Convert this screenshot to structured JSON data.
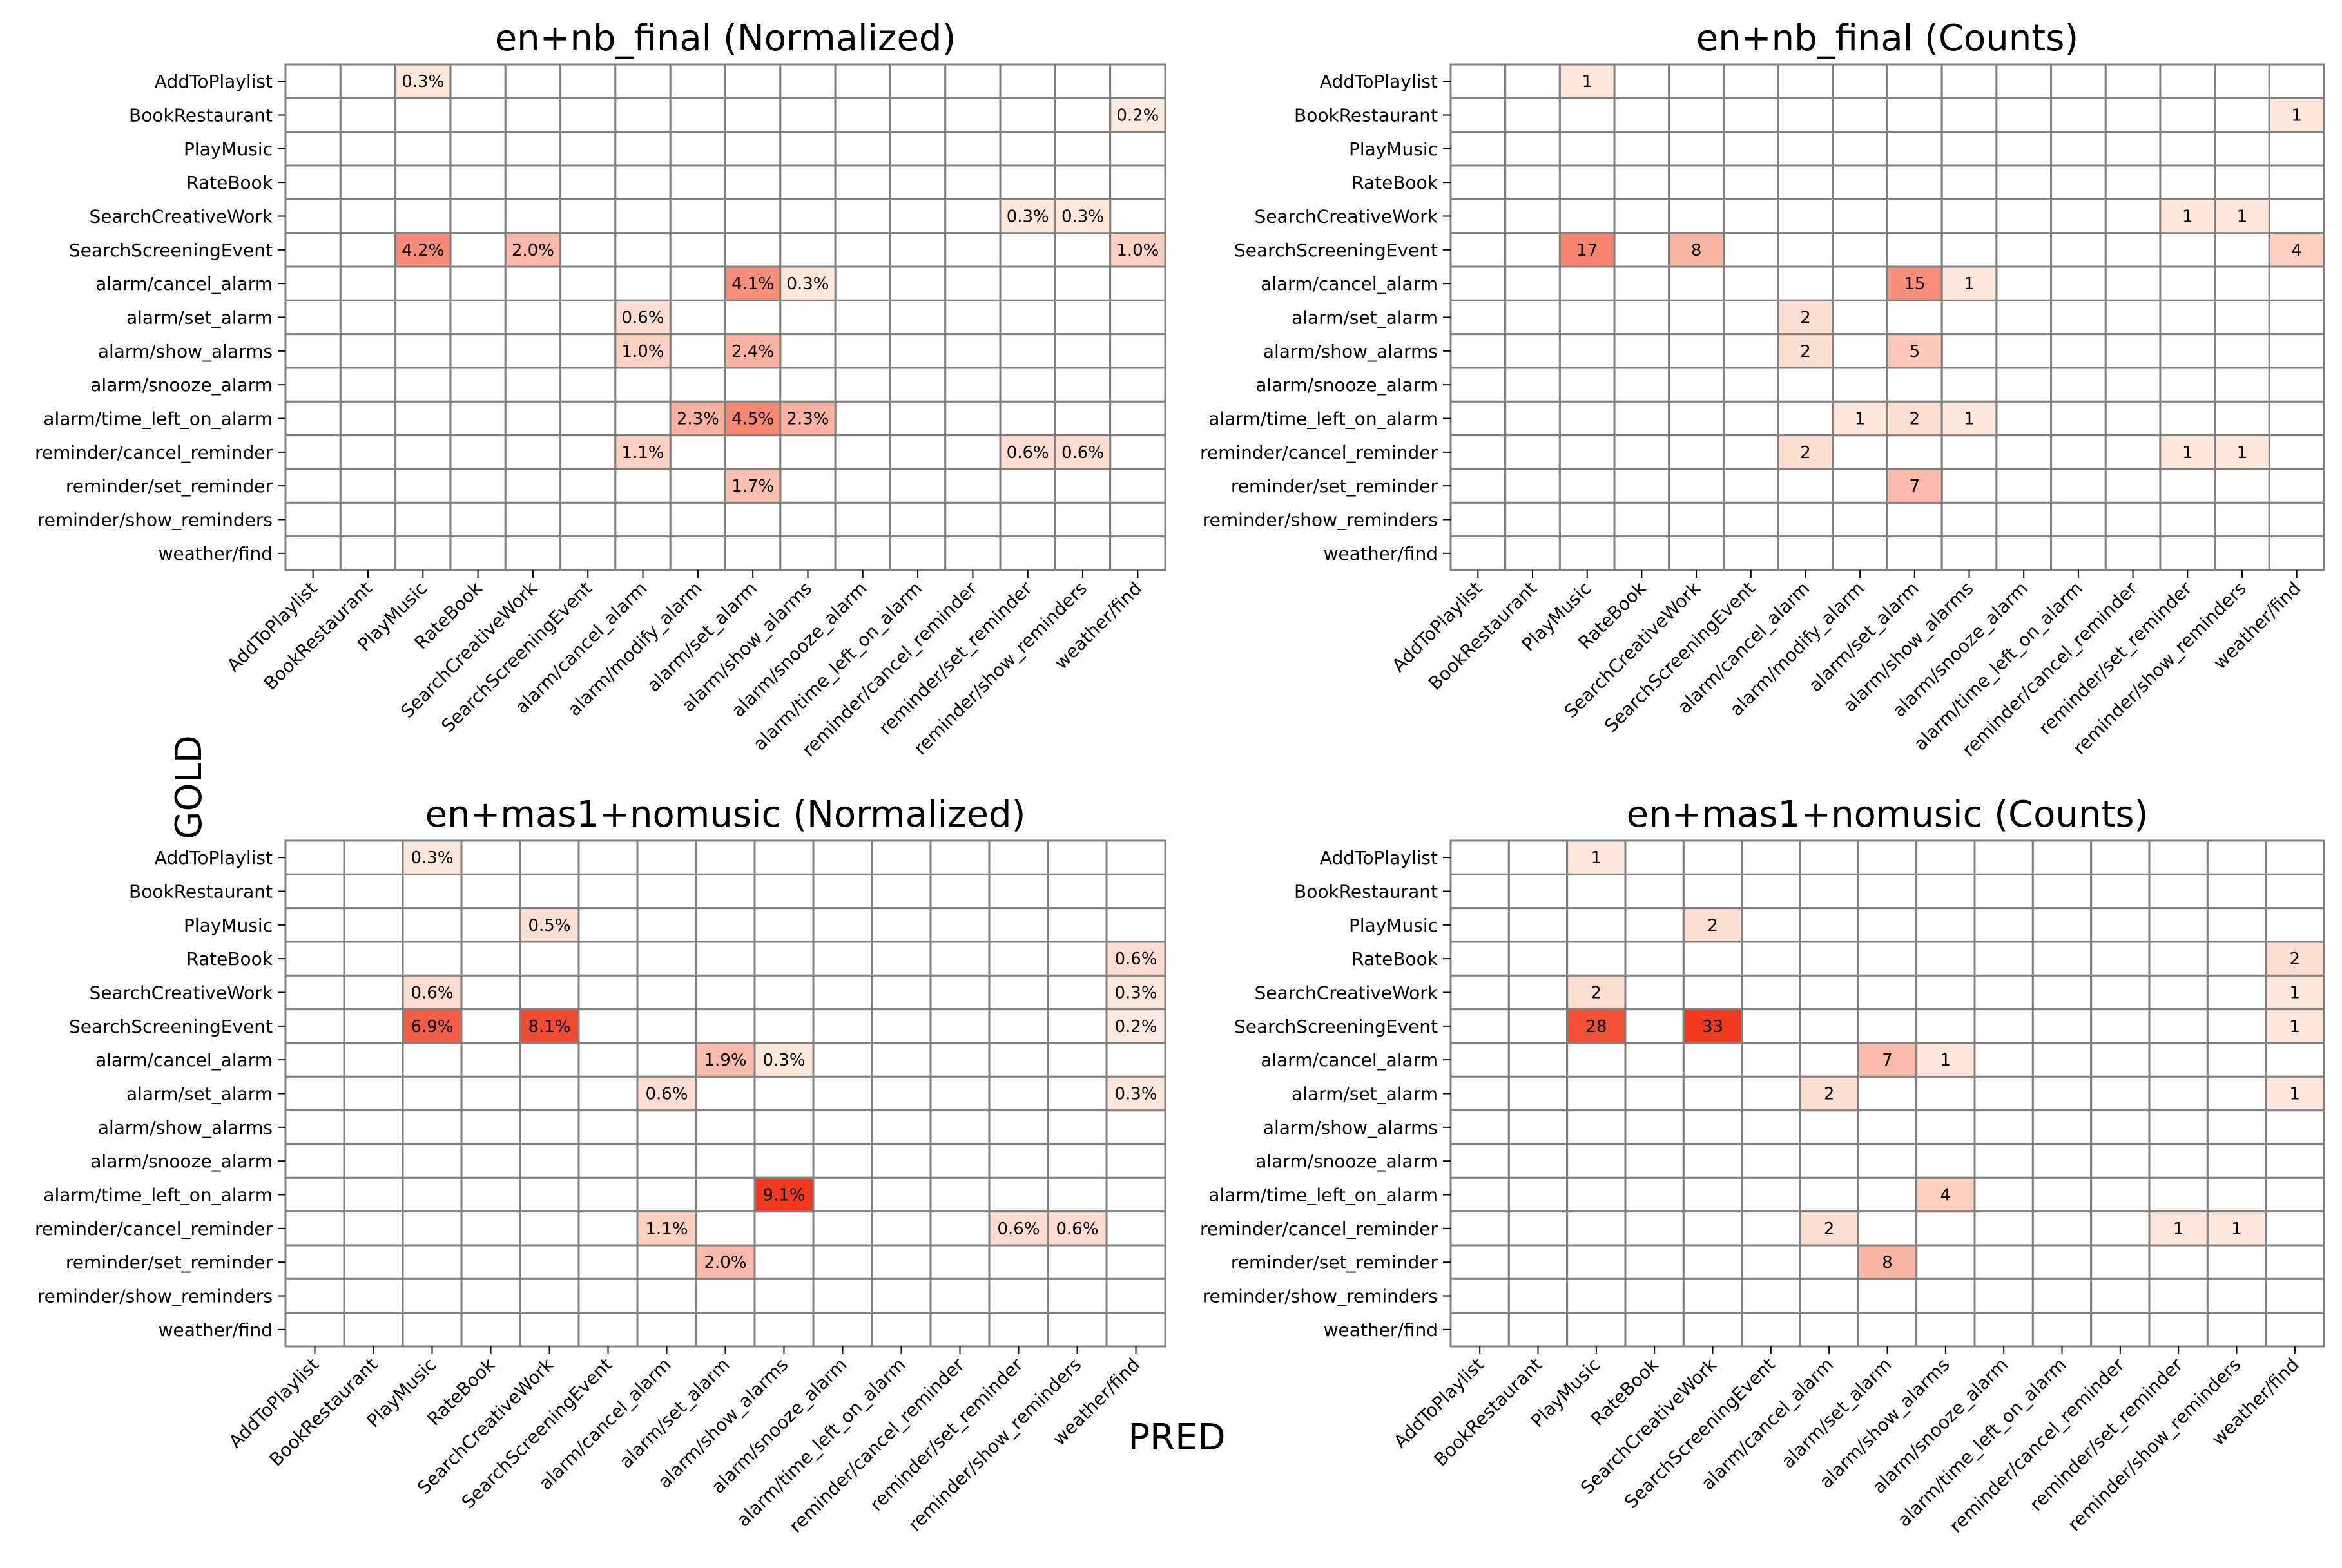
{
  "figure": {
    "ylabel": "GOLD",
    "xlabel": "PRED"
  },
  "colors": {
    "low": "#fff5eb",
    "high": "#f03b20",
    "grid": "#808080",
    "empty": "#ffffff"
  },
  "chart_data": [
    {
      "type": "heatmap",
      "title": "en+nb_final (Normalized)",
      "rows": [
        "AddToPlaylist",
        "BookRestaurant",
        "PlayMusic",
        "RateBook",
        "SearchCreativeWork",
        "SearchScreeningEvent",
        "alarm/cancel_alarm",
        "alarm/set_alarm",
        "alarm/show_alarms",
        "alarm/snooze_alarm",
        "alarm/time_left_on_alarm",
        "reminder/cancel_reminder",
        "reminder/set_reminder",
        "reminder/show_reminders",
        "weather/find"
      ],
      "cols": [
        "AddToPlaylist",
        "BookRestaurant",
        "PlayMusic",
        "RateBook",
        "SearchCreativeWork",
        "SearchScreeningEvent",
        "alarm/cancel_alarm",
        "alarm/modify_alarm",
        "alarm/set_alarm",
        "alarm/show_alarms",
        "alarm/snooze_alarm",
        "alarm/time_left_on_alarm",
        "reminder/cancel_reminder",
        "reminder/set_reminder",
        "reminder/show_reminders",
        "weather/find"
      ],
      "cells": [
        {
          "row": 0,
          "col": 2,
          "value": 0.3,
          "label": "0.3%"
        },
        {
          "row": 1,
          "col": 15,
          "value": 0.2,
          "label": "0.2%"
        },
        {
          "row": 4,
          "col": 13,
          "value": 0.3,
          "label": "0.3%"
        },
        {
          "row": 4,
          "col": 14,
          "value": 0.3,
          "label": "0.3%"
        },
        {
          "row": 5,
          "col": 2,
          "value": 4.2,
          "label": "4.2%"
        },
        {
          "row": 5,
          "col": 4,
          "value": 2.0,
          "label": "2.0%"
        },
        {
          "row": 5,
          "col": 15,
          "value": 1.0,
          "label": "1.0%"
        },
        {
          "row": 6,
          "col": 8,
          "value": 4.1,
          "label": "4.1%"
        },
        {
          "row": 6,
          "col": 9,
          "value": 0.3,
          "label": "0.3%"
        },
        {
          "row": 7,
          "col": 6,
          "value": 0.6,
          "label": "0.6%"
        },
        {
          "row": 8,
          "col": 6,
          "value": 1.0,
          "label": "1.0%"
        },
        {
          "row": 8,
          "col": 8,
          "value": 2.4,
          "label": "2.4%"
        },
        {
          "row": 10,
          "col": 7,
          "value": 2.3,
          "label": "2.3%"
        },
        {
          "row": 10,
          "col": 8,
          "value": 4.5,
          "label": "4.5%"
        },
        {
          "row": 10,
          "col": 9,
          "value": 2.3,
          "label": "2.3%"
        },
        {
          "row": 11,
          "col": 6,
          "value": 1.1,
          "label": "1.1%"
        },
        {
          "row": 11,
          "col": 13,
          "value": 0.6,
          "label": "0.6%"
        },
        {
          "row": 11,
          "col": 14,
          "value": 0.6,
          "label": "0.6%"
        },
        {
          "row": 12,
          "col": 8,
          "value": 1.7,
          "label": "1.7%"
        }
      ],
      "vmax": 9.1
    },
    {
      "type": "heatmap",
      "title": "en+nb_final (Counts)",
      "rows": [
        "AddToPlaylist",
        "BookRestaurant",
        "PlayMusic",
        "RateBook",
        "SearchCreativeWork",
        "SearchScreeningEvent",
        "alarm/cancel_alarm",
        "alarm/set_alarm",
        "alarm/show_alarms",
        "alarm/snooze_alarm",
        "alarm/time_left_on_alarm",
        "reminder/cancel_reminder",
        "reminder/set_reminder",
        "reminder/show_reminders",
        "weather/find"
      ],
      "cols": [
        "AddToPlaylist",
        "BookRestaurant",
        "PlayMusic",
        "RateBook",
        "SearchCreativeWork",
        "SearchScreeningEvent",
        "alarm/cancel_alarm",
        "alarm/modify_alarm",
        "alarm/set_alarm",
        "alarm/show_alarms",
        "alarm/snooze_alarm",
        "alarm/time_left_on_alarm",
        "reminder/cancel_reminder",
        "reminder/set_reminder",
        "reminder/show_reminders",
        "weather/find"
      ],
      "cells": [
        {
          "row": 0,
          "col": 2,
          "value": 1,
          "label": "1"
        },
        {
          "row": 1,
          "col": 15,
          "value": 1,
          "label": "1"
        },
        {
          "row": 4,
          "col": 13,
          "value": 1,
          "label": "1"
        },
        {
          "row": 4,
          "col": 14,
          "value": 1,
          "label": "1"
        },
        {
          "row": 5,
          "col": 2,
          "value": 17,
          "label": "17"
        },
        {
          "row": 5,
          "col": 4,
          "value": 8,
          "label": "8"
        },
        {
          "row": 5,
          "col": 15,
          "value": 4,
          "label": "4"
        },
        {
          "row": 6,
          "col": 8,
          "value": 15,
          "label": "15"
        },
        {
          "row": 6,
          "col": 9,
          "value": 1,
          "label": "1"
        },
        {
          "row": 7,
          "col": 6,
          "value": 2,
          "label": "2"
        },
        {
          "row": 8,
          "col": 6,
          "value": 2,
          "label": "2"
        },
        {
          "row": 8,
          "col": 8,
          "value": 5,
          "label": "5"
        },
        {
          "row": 10,
          "col": 7,
          "value": 1,
          "label": "1"
        },
        {
          "row": 10,
          "col": 8,
          "value": 2,
          "label": "2"
        },
        {
          "row": 10,
          "col": 9,
          "value": 1,
          "label": "1"
        },
        {
          "row": 11,
          "col": 6,
          "value": 2,
          "label": "2"
        },
        {
          "row": 11,
          "col": 13,
          "value": 1,
          "label": "1"
        },
        {
          "row": 11,
          "col": 14,
          "value": 1,
          "label": "1"
        },
        {
          "row": 12,
          "col": 8,
          "value": 7,
          "label": "7"
        }
      ],
      "vmax": 33
    },
    {
      "type": "heatmap",
      "title": "en+mas1+nomusic (Normalized)",
      "rows": [
        "AddToPlaylist",
        "BookRestaurant",
        "PlayMusic",
        "RateBook",
        "SearchCreativeWork",
        "SearchScreeningEvent",
        "alarm/cancel_alarm",
        "alarm/set_alarm",
        "alarm/show_alarms",
        "alarm/snooze_alarm",
        "alarm/time_left_on_alarm",
        "reminder/cancel_reminder",
        "reminder/set_reminder",
        "reminder/show_reminders",
        "weather/find"
      ],
      "cols": [
        "AddToPlaylist",
        "BookRestaurant",
        "PlayMusic",
        "RateBook",
        "SearchCreativeWork",
        "SearchScreeningEvent",
        "alarm/cancel_alarm",
        "alarm/set_alarm",
        "alarm/show_alarms",
        "alarm/snooze_alarm",
        "alarm/time_left_on_alarm",
        "reminder/cancel_reminder",
        "reminder/set_reminder",
        "reminder/show_reminders",
        "weather/find"
      ],
      "cells": [
        {
          "row": 0,
          "col": 2,
          "value": 0.3,
          "label": "0.3%"
        },
        {
          "row": 2,
          "col": 4,
          "value": 0.5,
          "label": "0.5%"
        },
        {
          "row": 3,
          "col": 14,
          "value": 0.6,
          "label": "0.6%"
        },
        {
          "row": 4,
          "col": 2,
          "value": 0.6,
          "label": "0.6%"
        },
        {
          "row": 4,
          "col": 14,
          "value": 0.3,
          "label": "0.3%"
        },
        {
          "row": 5,
          "col": 2,
          "value": 6.9,
          "label": "6.9%"
        },
        {
          "row": 5,
          "col": 4,
          "value": 8.1,
          "label": "8.1%"
        },
        {
          "row": 5,
          "col": 14,
          "value": 0.2,
          "label": "0.2%"
        },
        {
          "row": 6,
          "col": 7,
          "value": 1.9,
          "label": "1.9%"
        },
        {
          "row": 6,
          "col": 8,
          "value": 0.3,
          "label": "0.3%"
        },
        {
          "row": 7,
          "col": 6,
          "value": 0.6,
          "label": "0.6%"
        },
        {
          "row": 7,
          "col": 14,
          "value": 0.3,
          "label": "0.3%"
        },
        {
          "row": 10,
          "col": 8,
          "value": 9.1,
          "label": "9.1%"
        },
        {
          "row": 11,
          "col": 6,
          "value": 1.1,
          "label": "1.1%"
        },
        {
          "row": 11,
          "col": 12,
          "value": 0.6,
          "label": "0.6%"
        },
        {
          "row": 11,
          "col": 13,
          "value": 0.6,
          "label": "0.6%"
        },
        {
          "row": 12,
          "col": 7,
          "value": 2.0,
          "label": "2.0%"
        }
      ],
      "vmax": 9.1
    },
    {
      "type": "heatmap",
      "title": "en+mas1+nomusic (Counts)",
      "rows": [
        "AddToPlaylist",
        "BookRestaurant",
        "PlayMusic",
        "RateBook",
        "SearchCreativeWork",
        "SearchScreeningEvent",
        "alarm/cancel_alarm",
        "alarm/set_alarm",
        "alarm/show_alarms",
        "alarm/snooze_alarm",
        "alarm/time_left_on_alarm",
        "reminder/cancel_reminder",
        "reminder/set_reminder",
        "reminder/show_reminders",
        "weather/find"
      ],
      "cols": [
        "AddToPlaylist",
        "BookRestaurant",
        "PlayMusic",
        "RateBook",
        "SearchCreativeWork",
        "SearchScreeningEvent",
        "alarm/cancel_alarm",
        "alarm/set_alarm",
        "alarm/show_alarms",
        "alarm/snooze_alarm",
        "alarm/time_left_on_alarm",
        "reminder/cancel_reminder",
        "reminder/set_reminder",
        "reminder/show_reminders",
        "weather/find"
      ],
      "cells": [
        {
          "row": 0,
          "col": 2,
          "value": 1,
          "label": "1"
        },
        {
          "row": 2,
          "col": 4,
          "value": 2,
          "label": "2"
        },
        {
          "row": 3,
          "col": 14,
          "value": 2,
          "label": "2"
        },
        {
          "row": 4,
          "col": 2,
          "value": 2,
          "label": "2"
        },
        {
          "row": 4,
          "col": 14,
          "value": 1,
          "label": "1"
        },
        {
          "row": 5,
          "col": 2,
          "value": 28,
          "label": "28"
        },
        {
          "row": 5,
          "col": 4,
          "value": 33,
          "label": "33"
        },
        {
          "row": 5,
          "col": 14,
          "value": 1,
          "label": "1"
        },
        {
          "row": 6,
          "col": 7,
          "value": 7,
          "label": "7"
        },
        {
          "row": 6,
          "col": 8,
          "value": 1,
          "label": "1"
        },
        {
          "row": 7,
          "col": 6,
          "value": 2,
          "label": "2"
        },
        {
          "row": 7,
          "col": 14,
          "value": 1,
          "label": "1"
        },
        {
          "row": 10,
          "col": 8,
          "value": 4,
          "label": "4"
        },
        {
          "row": 11,
          "col": 6,
          "value": 2,
          "label": "2"
        },
        {
          "row": 11,
          "col": 12,
          "value": 1,
          "label": "1"
        },
        {
          "row": 11,
          "col": 13,
          "value": 1,
          "label": "1"
        },
        {
          "row": 12,
          "col": 7,
          "value": 8,
          "label": "8"
        }
      ],
      "vmax": 33
    }
  ]
}
